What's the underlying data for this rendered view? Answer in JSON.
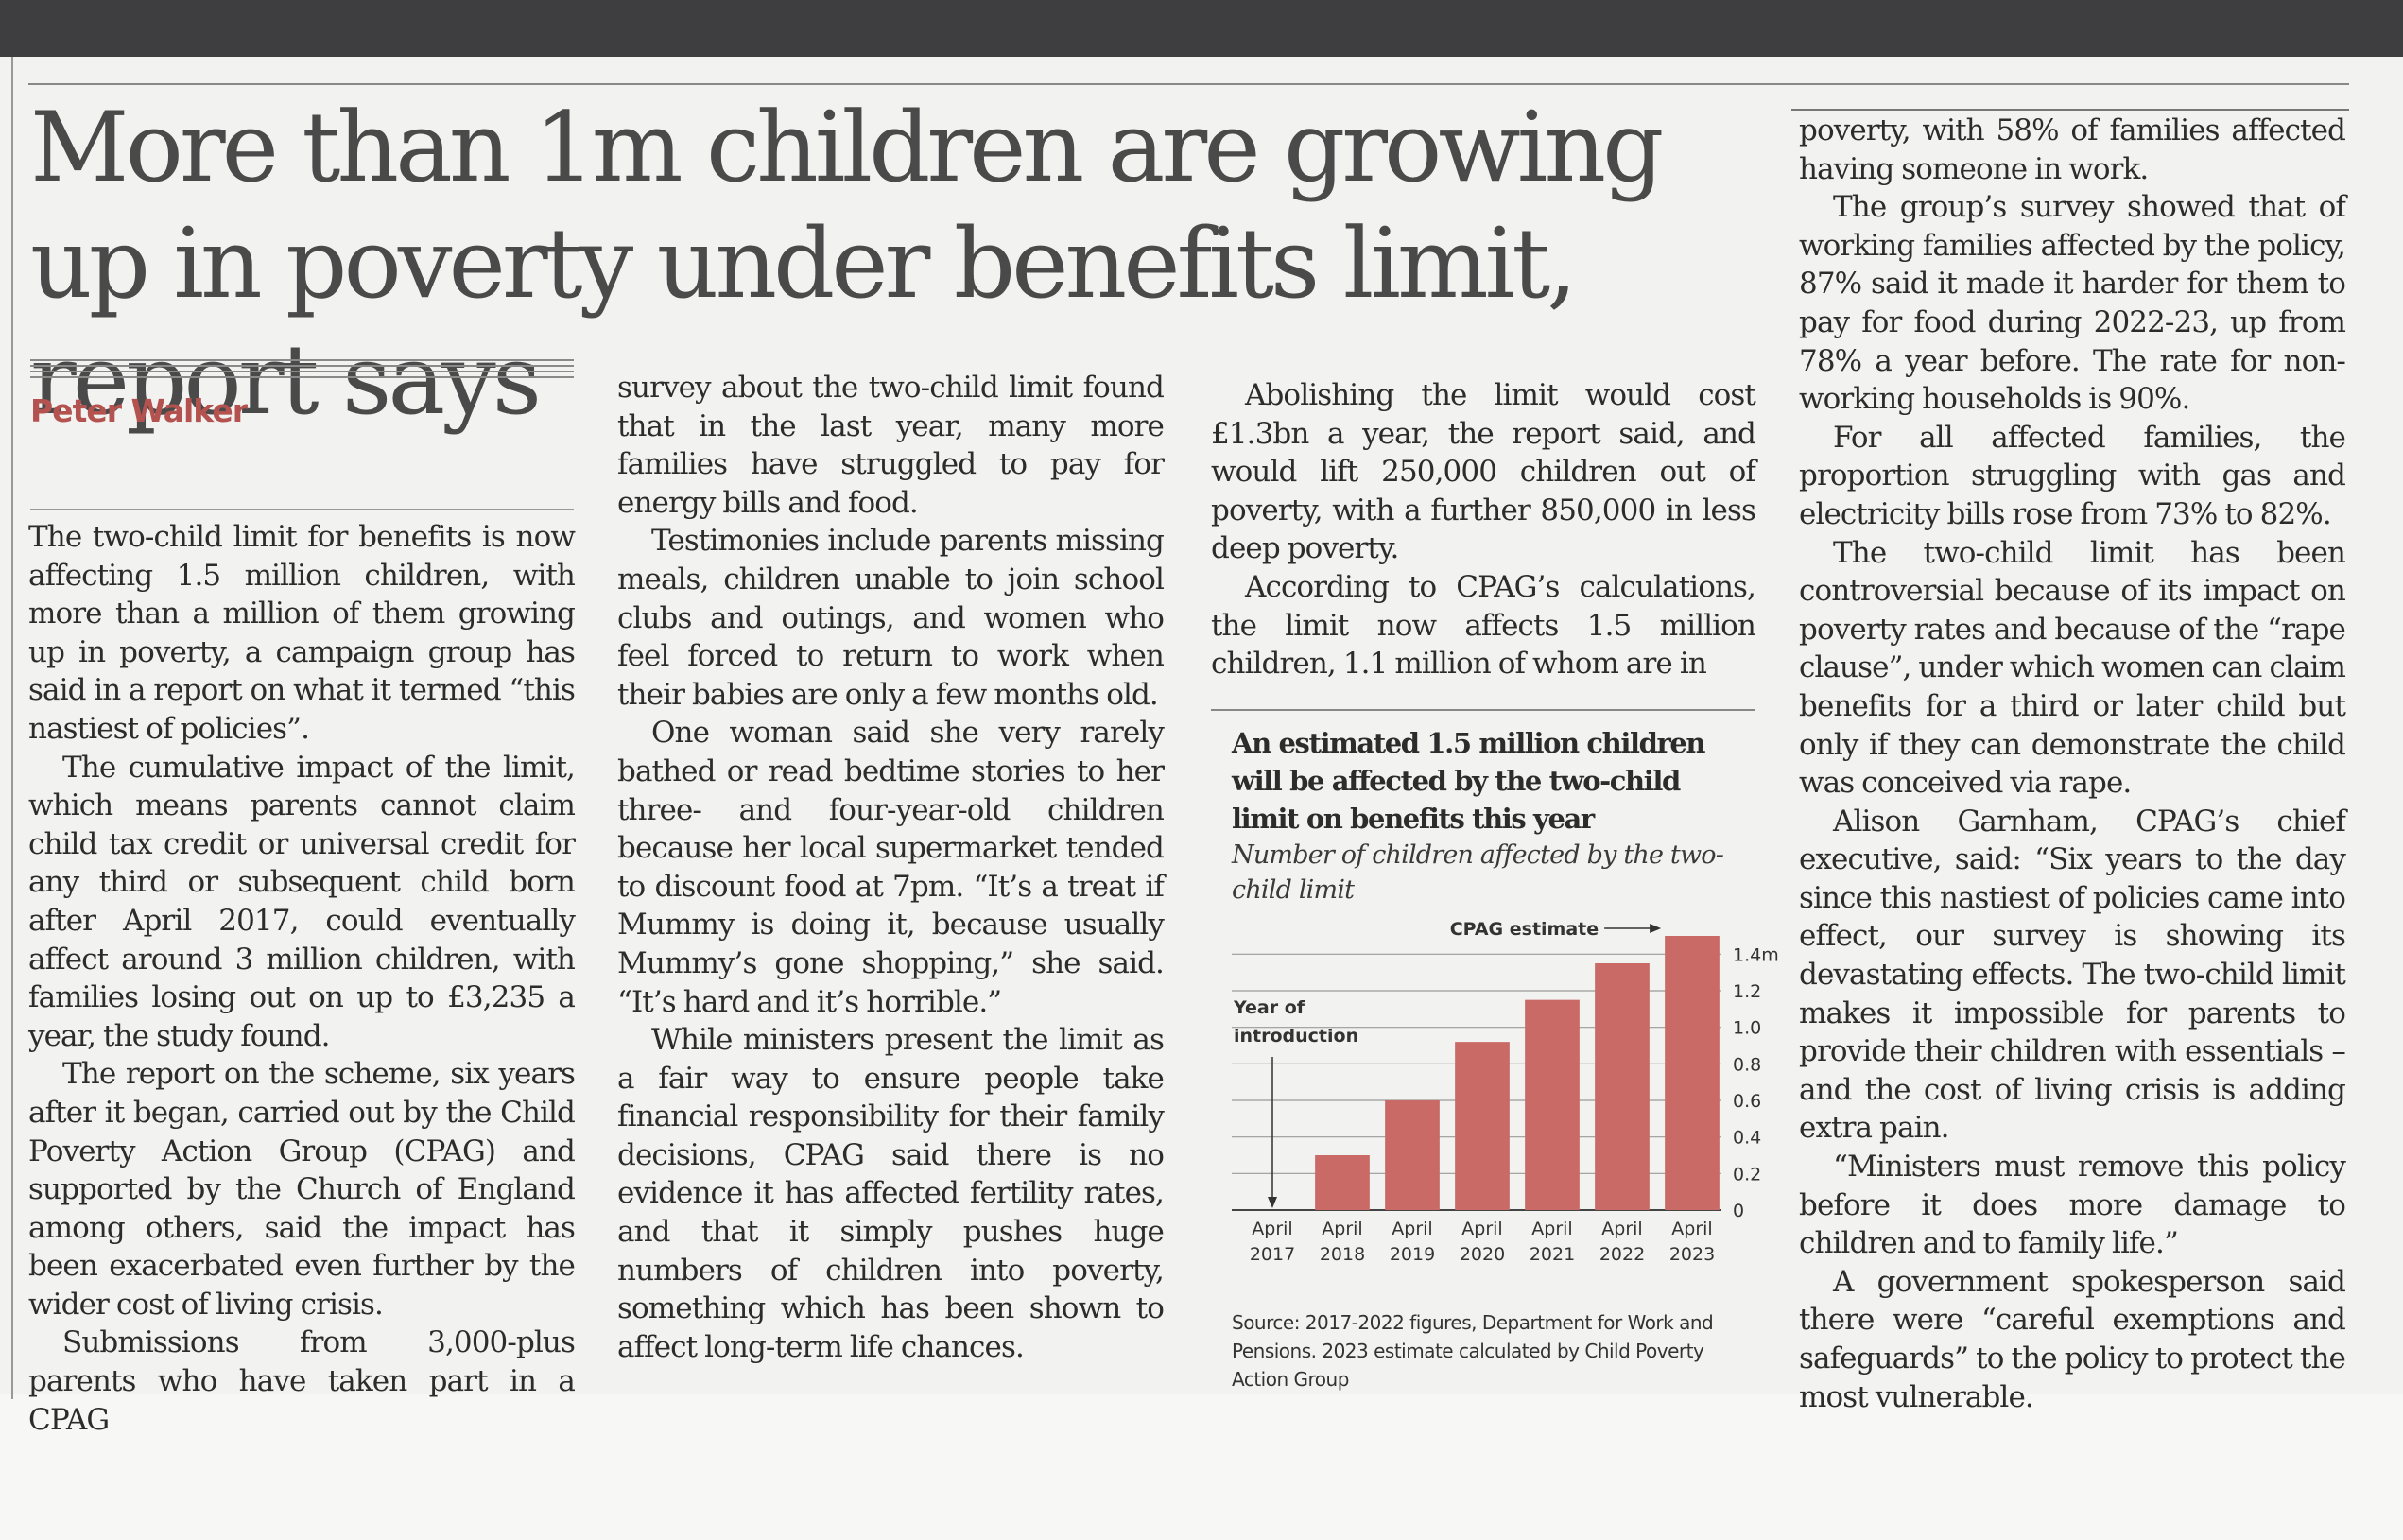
{
  "headline": "More than 1m children are growing up in poverty under benefits limit, report says",
  "byline": "Peter Walker",
  "columns": {
    "col1": [
      "The two-child limit for benefits is now affecting 1.5 million children, with more than a million of them growing up in poverty, a campaign group has said in a report on what it termed “this nastiest of policies”.",
      "The cumulative impact of the limit, which means parents cannot claim child tax credit or universal credit for any third or subsequent child born after April 2017, could eventually affect around 3 million children, with families losing out on up to £3,235 a year, the study found.",
      "The report on the scheme, six years after it began, carried out by the Child Poverty Action Group (CPAG) and supported by the Church of England among others, said the impact has been exacerbated even further by the wider cost of living crisis.",
      "Submissions from 3,000-plus parents who have taken part in a CPAG"
    ],
    "col2": [
      "survey about the two-child limit found that in the last year, many more families have struggled to pay for energy bills and food.",
      "Testimonies include parents missing meals, children unable to join school clubs and outings, and women who feel forced to return to work when their babies are only a few months old.",
      "One woman said she very rarely bathed or read bedtime stories to her three- and four-year-old children because her local supermarket tended to discount food at 7pm. “It’s a treat if Mummy is doing it, because usually Mummy’s gone shopping,” she said. “It’s hard and it’s horrible.”",
      "While ministers present the limit as a fair way to ensure people take financial responsibility for their family decisions, CPAG said there is no evidence it has affected fertility rates, and that it simply pushes huge numbers of children into poverty, something which has been shown to affect long-term life chances."
    ],
    "col3": [
      "Abolishing the limit would cost £1.3bn a year, the report said, and would lift 250,000 children out of poverty, with a further 850,000 in less deep poverty.",
      "According to CPAG’s calculations, the limit now affects 1.5 million children, 1.1 million of whom are in"
    ],
    "col4": [
      "poverty, with 58% of families affected having someone in work.",
      "The group’s survey showed that of working families affected by the policy, 87% said it made it harder for them to pay for food during 2022-23, up from 78% a year before. The rate for non-working households is 90%.",
      "For all affected families, the proportion struggling with gas and electricity bills rose from 73% to 82%.",
      "The two-child limit has been controversial because of its impact on poverty rates and because of the “rape clause”, under which women can claim benefits for a third or later child but only if they can demonstrate the child was conceived via rape.",
      "Alison Garnham, CPAG’s chief executive, said: “Six years to the day since this nastiest of policies came into effect, our survey is showing its devastating effects. The two-child limit makes it impossible for parents to provide their children with essentials – and the cost of living crisis is adding extra pain.",
      "“Ministers must remove this policy before it does more damage to children and to family life.”",
      "A government spokesperson said there were “careful exemptions and safeguards” to the policy to protect the most vulnerable."
    ]
  },
  "chart": {
    "title": "An estimated 1.5 million children will be affected by the two-child limit on benefits this year",
    "subtitle": "Number of children affected by the two-child limit",
    "source": "Source: 2017-2022 figures, Department for Work and Pensions. 2023 estimate calculated by Child Poverty Action Group"
  },
  "chart_data": {
    "type": "bar",
    "categories": [
      [
        "April",
        "2017"
      ],
      [
        "April",
        "2018"
      ],
      [
        "April",
        "2019"
      ],
      [
        "April",
        "2020"
      ],
      [
        "April",
        "2021"
      ],
      [
        "April",
        "2022"
      ],
      [
        "April",
        "2023"
      ]
    ],
    "values": [
      0,
      0.3,
      0.6,
      0.92,
      1.15,
      1.35,
      1.5
    ],
    "yticks": [
      "0",
      "0.2",
      "0.4",
      "0.6",
      "0.8",
      "1.0",
      "1.2",
      "1.4m"
    ],
    "ylim": [
      0,
      1.5
    ],
    "bar_color": "#c96a66",
    "annotations": {
      "estimate": "CPAG estimate",
      "introduction": [
        "Year of",
        "introduction"
      ]
    }
  }
}
